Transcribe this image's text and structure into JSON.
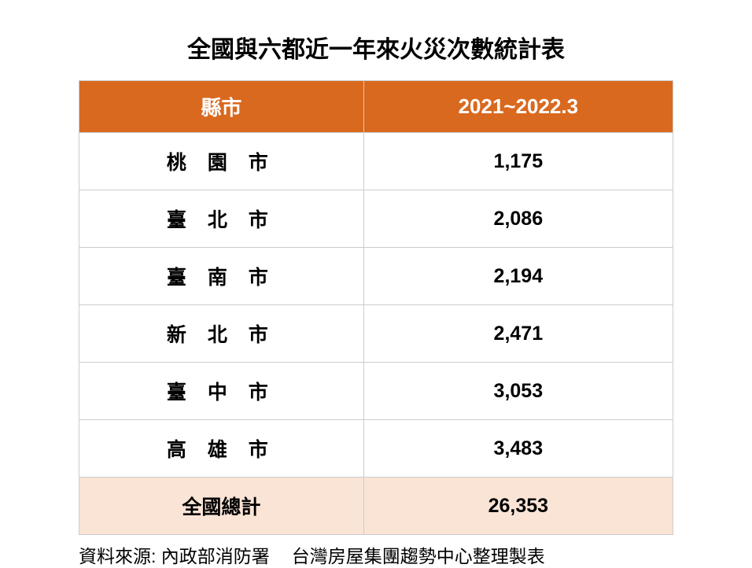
{
  "title": "全國與六都近一年來火災次數統計表",
  "table": {
    "columns": [
      "縣市",
      "2021~2022.3"
    ],
    "rows": [
      {
        "city": "桃 園 市",
        "count": "1,175"
      },
      {
        "city": "臺 北 市",
        "count": "2,086"
      },
      {
        "city": "臺 南 市",
        "count": "2,194"
      },
      {
        "city": "新 北 市",
        "count": "2,471"
      },
      {
        "city": "臺 中 市",
        "count": "3,053"
      },
      {
        "city": "高 雄 市",
        "count": "3,483"
      }
    ],
    "total": {
      "label": "全國總計",
      "count": "26,353"
    },
    "header_bg": "#d9691e",
    "header_fg": "#ffffff",
    "total_bg": "#fae4d6",
    "cell_bg": "#ffffff",
    "border_color": "#cccccc",
    "title_fontsize": 30,
    "header_fontsize": 26,
    "cell_fontsize": 25,
    "text_color": "#000000"
  },
  "footer": {
    "source": "資料來源: 內政部消防署",
    "credit": "台灣房屋集團趨勢中心整理製表",
    "fontsize": 23
  }
}
